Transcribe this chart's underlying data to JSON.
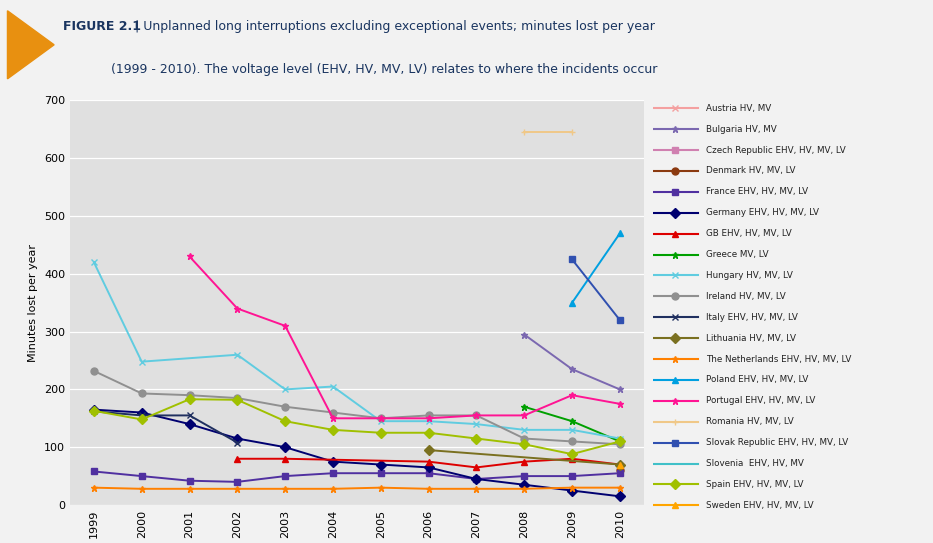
{
  "title_bold": "FIGURE 2.1",
  "title_sep": " | ",
  "title_line1": "Unplanned long interruptions excluding exceptional events; minutes lost per year",
  "title_line2": "            (1999 - 2010). The voltage level (EHV, HV, MV, LV) relates to where the incidents occur",
  "ylabel": "Minutes lost per year",
  "years": [
    1999,
    2000,
    2001,
    2002,
    2003,
    2004,
    2005,
    2006,
    2007,
    2008,
    2009,
    2010
  ],
  "ylim": [
    0,
    700
  ],
  "yticks": [
    0,
    100,
    200,
    300,
    400,
    500,
    600,
    700
  ],
  "series": [
    {
      "name": "Austria HV, MV",
      "color": "#f4a0a0",
      "marker": "x",
      "data": [
        null,
        null,
        null,
        null,
        null,
        null,
        null,
        null,
        null,
        null,
        null,
        110
      ]
    },
    {
      "name": "Bulgaria HV, MV",
      "color": "#7b68b0",
      "marker": "*",
      "data": [
        null,
        null,
        null,
        null,
        null,
        null,
        null,
        null,
        null,
        295,
        235,
        200
      ]
    },
    {
      "name": "Czech Republic EHV, HV, MV, LV",
      "color": "#d080b0",
      "marker": "s",
      "data": [
        null,
        null,
        null,
        null,
        null,
        null,
        null,
        null,
        null,
        null,
        null,
        110
      ]
    },
    {
      "name": "Denmark HV, MV, LV",
      "color": "#8b3a10",
      "marker": "o",
      "data": [
        null,
        null,
        null,
        null,
        null,
        null,
        null,
        null,
        null,
        null,
        null,
        60
      ]
    },
    {
      "name": "France EHV, HV, MV, LV",
      "color": "#5030a0",
      "marker": "s",
      "data": [
        58,
        50,
        42,
        40,
        50,
        55,
        55,
        55,
        45,
        50,
        50,
        55
      ]
    },
    {
      "name": "Germany EHV, HV, MV, LV",
      "color": "#000070",
      "marker": "D",
      "data": [
        165,
        160,
        140,
        115,
        100,
        75,
        70,
        65,
        45,
        35,
        25,
        15
      ]
    },
    {
      "name": "GB EHV, HV, MV, LV",
      "color": "#dd0000",
      "marker": "^",
      "data": [
        null,
        null,
        null,
        80,
        80,
        null,
        null,
        75,
        65,
        75,
        80,
        70
      ]
    },
    {
      "name": "Greece MV, LV",
      "color": "#00a000",
      "marker": "*",
      "data": [
        null,
        null,
        null,
        null,
        null,
        null,
        null,
        null,
        null,
        170,
        145,
        110
      ]
    },
    {
      "name": "Hungary HV, MV, LV",
      "color": "#60cce0",
      "marker": "x",
      "data": [
        420,
        248,
        null,
        260,
        200,
        205,
        145,
        145,
        140,
        130,
        130,
        115
      ]
    },
    {
      "name": "Ireland HV, MV, LV",
      "color": "#909090",
      "marker": "o",
      "data": [
        232,
        193,
        190,
        185,
        170,
        160,
        150,
        155,
        155,
        115,
        110,
        105
      ]
    },
    {
      "name": "Italy EHV, HV, MV, LV",
      "color": "#203060",
      "marker": "x",
      "data": [
        162,
        155,
        155,
        108,
        null,
        null,
        null,
        null,
        null,
        null,
        null,
        null
      ]
    },
    {
      "name": "Lithuania HV, MV, LV",
      "color": "#7a7020",
      "marker": "D",
      "data": [
        null,
        null,
        null,
        null,
        null,
        null,
        null,
        95,
        null,
        null,
        null,
        70
      ]
    },
    {
      "name": "The Netherlands EHV, HV, MV, LV",
      "color": "#ff8000",
      "marker": "*",
      "data": [
        30,
        28,
        28,
        28,
        28,
        28,
        30,
        28,
        28,
        28,
        30,
        30
      ]
    },
    {
      "name": "Poland EHV, HV, MV, LV",
      "color": "#00a0e0",
      "marker": "^",
      "data": [
        null,
        null,
        null,
        null,
        null,
        null,
        null,
        null,
        null,
        null,
        350,
        470
      ]
    },
    {
      "name": "Portugal EHV, HV, MV, LV",
      "color": "#ff1493",
      "marker": "*",
      "data": [
        null,
        null,
        430,
        340,
        310,
        150,
        150,
        150,
        155,
        155,
        190,
        175
      ]
    },
    {
      "name": "Romania HV, MV, LV",
      "color": "#f0c888",
      "marker": "+",
      "data": [
        null,
        null,
        null,
        null,
        null,
        null,
        null,
        null,
        null,
        645,
        645,
        null
      ]
    },
    {
      "name": "Slovak Republic EHV, HV, MV, LV",
      "color": "#3050b0",
      "marker": "s",
      "data": [
        null,
        null,
        null,
        null,
        null,
        null,
        null,
        null,
        null,
        null,
        425,
        320
      ]
    },
    {
      "name": "Slovenia  EHV, HV, MV",
      "color": "#40c0c8",
      "marker": "None",
      "data": [
        null,
        null,
        null,
        null,
        null,
        null,
        null,
        null,
        null,
        null,
        null,
        110
      ]
    },
    {
      "name": "Spain EHV, HV, MV, LV",
      "color": "#a0c000",
      "marker": "D",
      "data": [
        163,
        148,
        183,
        182,
        145,
        130,
        125,
        125,
        115,
        105,
        88,
        110
      ]
    },
    {
      "name": "Sweden EHV, HV, MV, LV",
      "color": "#ffa500",
      "marker": "^",
      "data": [
        null,
        null,
        null,
        null,
        null,
        null,
        null,
        null,
        null,
        null,
        null,
        70
      ]
    }
  ],
  "header_bg": "#c8d8e8",
  "plot_bg": "#e0e0e0",
  "fig_bg": "#f2f2f2",
  "triangle_color": "#e89010",
  "header_text_color": "#1a3560"
}
